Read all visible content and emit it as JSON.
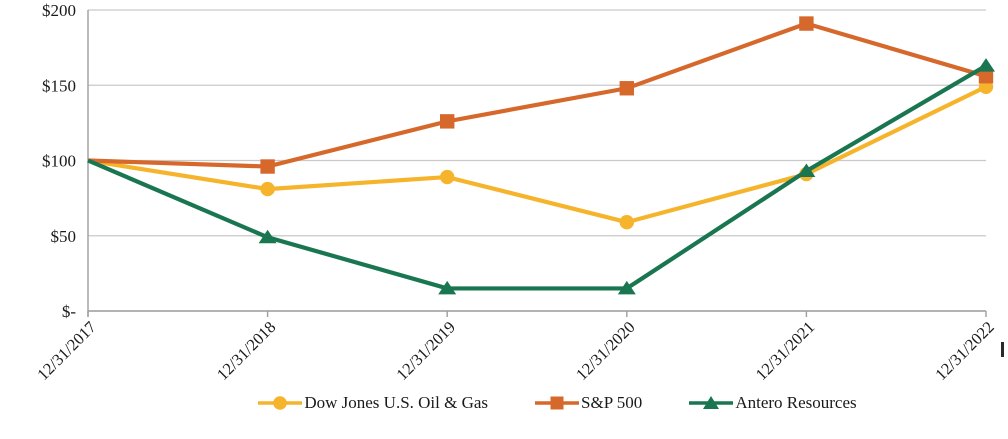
{
  "chart_data": {
    "type": "line",
    "title": "",
    "xlabel": "",
    "ylabel": "",
    "categories": [
      "12/31/2017",
      "12/31/2018",
      "12/31/2019",
      "12/31/2020",
      "12/31/2021",
      "12/31/2022"
    ],
    "series": [
      {
        "name": "Dow Jones U.S. Oil & Gas",
        "marker": "circle",
        "color": "#F6B42C",
        "values": [
          100,
          81,
          89,
          59,
          91,
          149
        ]
      },
      {
        "name": "S&P 500",
        "marker": "square",
        "color": "#D6682B",
        "values": [
          100,
          96,
          126,
          148,
          191,
          156
        ]
      },
      {
        "name": "Antero Resources",
        "marker": "triangle",
        "color": "#1A7650",
        "values": [
          100,
          49,
          15,
          15,
          93,
          163
        ]
      }
    ],
    "yticks": [
      {
        "label": "$200",
        "value": 200
      },
      {
        "label": "$150",
        "value": 150
      },
      {
        "label": "$100",
        "value": 100
      },
      {
        "label": "$50",
        "value": 50
      },
      {
        "label": "$-",
        "value": 0
      }
    ],
    "ylim": [
      0,
      200
    ],
    "grid": "horizontal",
    "legend_position": "bottom",
    "colors": {
      "gridline": "#C9C9C9",
      "axis": "#9E9E9E",
      "text": "#1A1A1A"
    }
  }
}
